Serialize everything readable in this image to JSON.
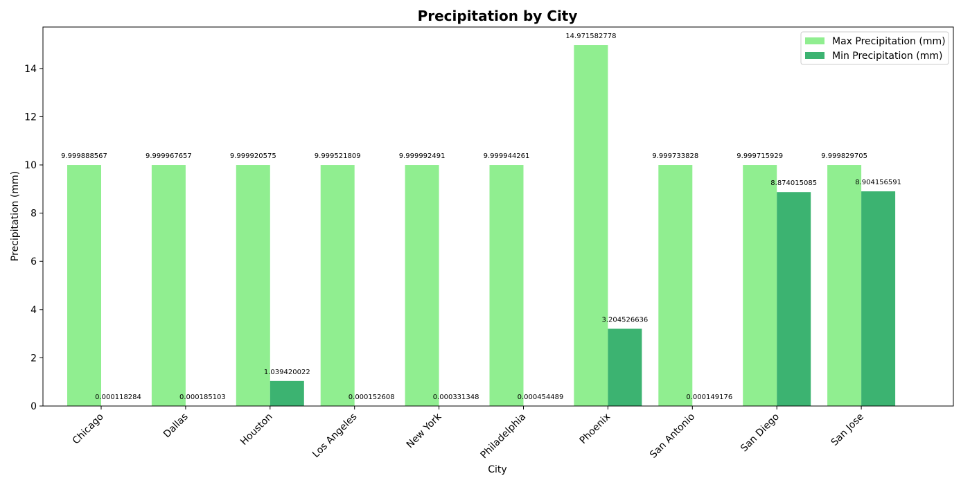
{
  "chart_data": {
    "type": "bar",
    "title": "Precipitation by City",
    "xlabel": "City",
    "ylabel": "Precipitation (mm)",
    "ylim": [
      0,
      15.72
    ],
    "yticks": [
      0,
      2,
      4,
      6,
      8,
      10,
      12,
      14
    ],
    "categories": [
      "Chicago",
      "Dallas",
      "Houston",
      "Los Angeles",
      "New York",
      "Philadelphia",
      "Phoenix",
      "San Antonio",
      "San Diego",
      "San Jose"
    ],
    "series": [
      {
        "name": "Max Precipitation (mm)",
        "color": "#90ee90",
        "values": [
          9.999888567,
          9.999967657,
          9.999920575,
          9.999521809,
          9.999992491,
          9.999944261,
          14.971582778,
          9.999733828,
          9.999715929,
          9.999829705
        ],
        "labels": [
          "9.999888567",
          "9.999967657",
          "9.999920575",
          "9.999521809",
          "9.999992491",
          "9.999944261",
          "14.971582778",
          "9.999733828",
          "9.999715929",
          "9.999829705"
        ]
      },
      {
        "name": "Min Precipitation (mm)",
        "color": "#3cb371",
        "values": [
          0.000118284,
          0.000185103,
          1.039420022,
          0.000152608,
          0.000331348,
          0.000454489,
          3.204526636,
          0.000149176,
          8.874015085,
          8.904156591
        ],
        "labels": [
          "0.000118284",
          "0.000185103",
          "1.039420022",
          "0.000152608",
          "0.000331348",
          "0.000454489",
          "3.204526636",
          "0.000149176",
          "8.874015085",
          "8.904156591"
        ]
      }
    ],
    "legend_position": "top-right",
    "grid": false
  }
}
